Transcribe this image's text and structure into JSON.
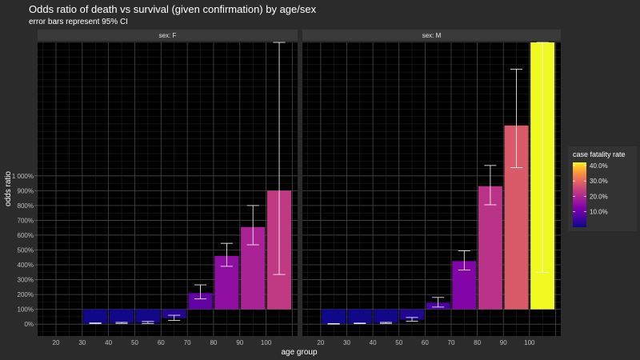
{
  "chart_data": {
    "type": "bar",
    "title": "Odds ratio of death vs survival (given confirmation) by age/sex",
    "subtitle": "error bars represent 95% CI",
    "xlabel": "age group",
    "ylabel": "odds ratio",
    "y_ticks": [
      "0%",
      "100%",
      "200%",
      "300%",
      "400%",
      "500%",
      "600%",
      "700%",
      "800%",
      "900%",
      "1 000%"
    ],
    "x_ticks": [
      "20",
      "30",
      "40",
      "50",
      "60",
      "70",
      "80",
      "90",
      "100"
    ],
    "ylim": [
      -80,
      1900
    ],
    "grid": true,
    "baseline": 100,
    "legend": {
      "title": "case fatality rate",
      "position": "right",
      "ticks": [
        "40.0%",
        "30.0%",
        "20.0%",
        "10.0%"
      ],
      "tick_values": [
        40,
        30,
        20,
        10
      ],
      "range": [
        0,
        42
      ]
    },
    "panels": [
      {
        "label": "sex: F",
        "bars": [
          {
            "age": 35,
            "value": 5,
            "ci_low": 3,
            "ci_high": 8,
            "cfr": 0.4
          },
          {
            "age": 45,
            "value": 8,
            "ci_low": 5,
            "ci_high": 12,
            "cfr": 0.6
          },
          {
            "age": 55,
            "value": 10,
            "ci_low": 5,
            "ci_high": 18,
            "cfr": 0.8
          },
          {
            "age": 65,
            "value": 40,
            "ci_low": 25,
            "ci_high": 60,
            "cfr": 2.5
          },
          {
            "age": 75,
            "value": 210,
            "ci_low": 170,
            "ci_high": 265,
            "cfr": 9
          },
          {
            "age": 85,
            "value": 460,
            "ci_low": 390,
            "ci_high": 545,
            "cfr": 15
          },
          {
            "age": 95,
            "value": 655,
            "ci_low": 535,
            "ci_high": 800,
            "cfr": 19
          },
          {
            "age": 105,
            "value": 900,
            "ci_low": 335,
            "ci_high": 1900,
            "cfr": 23
          }
        ]
      },
      {
        "label": "sex: M",
        "bars": [
          {
            "age": 25,
            "value": 2,
            "ci_low": 0,
            "ci_high": 4,
            "cfr": 0.2
          },
          {
            "age": 35,
            "value": 5,
            "ci_low": 3,
            "ci_high": 7,
            "cfr": 0.4
          },
          {
            "age": 45,
            "value": 8,
            "ci_low": 5,
            "ci_high": 12,
            "cfr": 0.6
          },
          {
            "age": 55,
            "value": 30,
            "ci_low": 20,
            "ci_high": 45,
            "cfr": 2
          },
          {
            "age": 65,
            "value": 145,
            "ci_low": 115,
            "ci_high": 180,
            "cfr": 6
          },
          {
            "age": 75,
            "value": 425,
            "ci_low": 365,
            "ci_high": 495,
            "cfr": 13
          },
          {
            "age": 85,
            "value": 930,
            "ci_low": 805,
            "ci_high": 1070,
            "cfr": 22
          },
          {
            "age": 95,
            "value": 1340,
            "ci_low": 1055,
            "ci_high": 1720,
            "cfr": 28
          },
          {
            "age": 105,
            "value": 1900,
            "ci_low": 350,
            "ci_high": 1900,
            "cfr": 42
          }
        ]
      }
    ]
  }
}
